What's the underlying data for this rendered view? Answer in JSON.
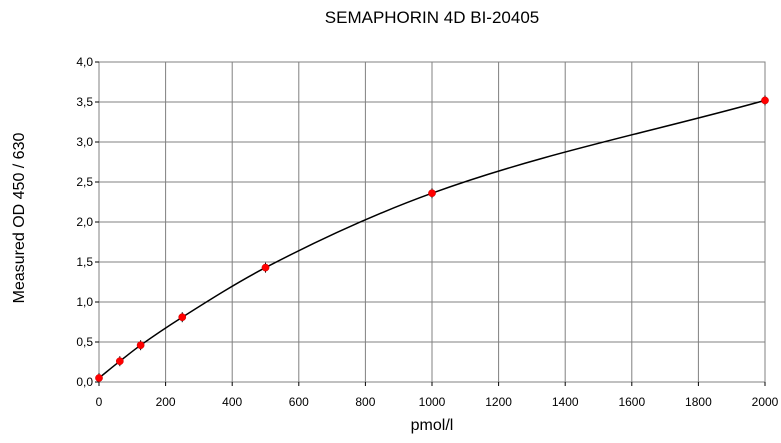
{
  "chart_data": {
    "type": "scatter",
    "title": "SEMAPHORIN 4D BI-20405",
    "xlabel": "pmol/l",
    "ylabel": "Measured OD 450 / 630",
    "xlim": [
      0,
      2000
    ],
    "ylim": [
      0,
      4.0
    ],
    "x_ticks": [
      "0",
      "200",
      "400",
      "600",
      "800",
      "1000",
      "1200",
      "1400",
      "1600",
      "1800",
      "2000"
    ],
    "y_ticks": [
      "0,0",
      "0,5",
      "1,0",
      "1,5",
      "2,0",
      "2,5",
      "3,0",
      "3,5",
      "4,0"
    ],
    "grid": true,
    "legend": "none",
    "series": [
      {
        "marker_color": "#ff0000",
        "line_color": "#000000",
        "points": [
          {
            "x": 0,
            "y": 0.05
          },
          {
            "x": 62.5,
            "y": 0.26
          },
          {
            "x": 125,
            "y": 0.46
          },
          {
            "x": 250,
            "y": 0.81
          },
          {
            "x": 500,
            "y": 1.43
          },
          {
            "x": 1000,
            "y": 2.36
          },
          {
            "x": 2000,
            "y": 3.52
          }
        ],
        "fit": "smooth"
      }
    ]
  }
}
